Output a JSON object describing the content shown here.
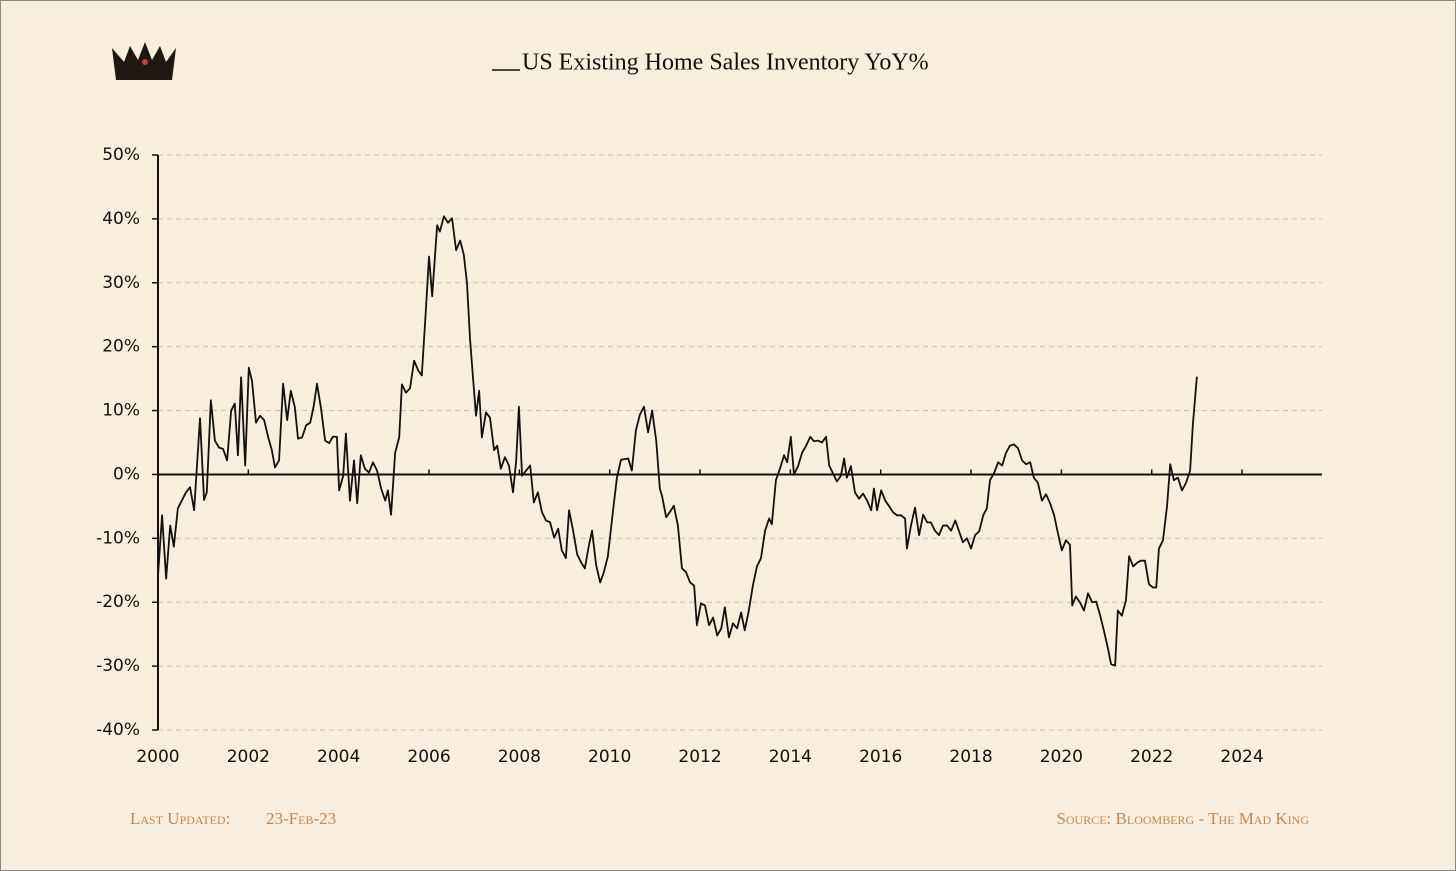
{
  "chart_data": {
    "type": "line",
    "title": "US Existing Home Sales Inventory YoY%",
    "footer_label": "Last Updated:",
    "footer_date": "23-Feb-23",
    "source": "Source: Bloomberg - The Mad King",
    "xlim": [
      2000,
      2025.77
    ],
    "xticks": [
      2000,
      2002,
      2004,
      2006,
      2008,
      2010,
      2012,
      2014,
      2016,
      2018,
      2020,
      2022,
      2024
    ],
    "ylim": [
      -40,
      50
    ],
    "yticks": [
      {
        "value": -40,
        "label": "-40%"
      },
      {
        "value": -30,
        "label": "-30%"
      },
      {
        "value": -20,
        "label": "-20%"
      },
      {
        "value": -10,
        "label": "-10%"
      },
      {
        "value": 0,
        "label": "0%"
      },
      {
        "value": 10,
        "label": "10%"
      },
      {
        "value": 20,
        "label": "20%"
      },
      {
        "value": 30,
        "label": "30%"
      },
      {
        "value": 40,
        "label": "40%"
      },
      {
        "value": 50,
        "label": "50%"
      }
    ],
    "grid": true,
    "x": [
      2000.0,
      2000.09,
      2000.18,
      2000.27,
      2000.35,
      2000.44,
      2000.62,
      2000.71,
      2000.8,
      2000.93,
      2001.02,
      2001.08,
      2001.17,
      2001.26,
      2001.35,
      2001.44,
      2001.53,
      2001.62,
      2001.7,
      2001.77,
      2001.84,
      2001.93,
      2002.01,
      2002.08,
      2002.17,
      2002.26,
      2002.35,
      2002.44,
      2002.52,
      2002.59,
      2002.68,
      2002.77,
      2002.86,
      2002.94,
      2003.03,
      2003.1,
      2003.19,
      2003.28,
      2003.37,
      2003.45,
      2003.52,
      2003.61,
      2003.7,
      2003.79,
      2003.87,
      2003.96,
      2004.01,
      2004.1,
      2004.16,
      2004.25,
      2004.34,
      2004.41,
      2004.49,
      2004.58,
      2004.67,
      2004.76,
      2004.85,
      2004.94,
      2005.03,
      2005.09,
      2005.16,
      2005.25,
      2005.34,
      2005.4,
      2005.49,
      2005.58,
      2005.67,
      2005.76,
      2005.84,
      2005.93,
      2006.0,
      2006.07,
      2006.18,
      2006.24,
      2006.33,
      2006.42,
      2006.51,
      2006.6,
      2006.69,
      2006.77,
      2006.84,
      2006.91,
      2006.97,
      2007.04,
      2007.11,
      2007.17,
      2007.26,
      2007.35,
      2007.44,
      2007.51,
      2007.59,
      2007.68,
      2007.77,
      2007.86,
      2007.93,
      2007.99,
      2008.06,
      2008.15,
      2008.24,
      2008.32,
      2008.41,
      2008.5,
      2008.59,
      2008.68,
      2008.77,
      2008.86,
      2008.94,
      2009.03,
      2009.1,
      2009.19,
      2009.28,
      2009.37,
      2009.45,
      2009.54,
      2009.61,
      2009.7,
      2009.79,
      2009.87,
      2009.96,
      2010.07,
      2010.16,
      2010.25,
      2010.41,
      2010.49,
      2010.58,
      2010.67,
      2010.76,
      2010.85,
      2010.94,
      2011.03,
      2011.11,
      2011.16,
      2011.25,
      2011.34,
      2011.42,
      2011.51,
      2011.6,
      2011.69,
      2011.78,
      2011.87,
      2011.93,
      2012.02,
      2012.11,
      2012.2,
      2012.29,
      2012.38,
      2012.47,
      2012.55,
      2012.64,
      2012.73,
      2012.82,
      2012.91,
      2012.99,
      2013.08,
      2013.17,
      2013.26,
      2013.35,
      2013.44,
      2013.53,
      2013.59,
      2013.68,
      2013.77,
      2013.86,
      2013.93,
      2014.01,
      2014.08,
      2014.17,
      2014.26,
      2014.35,
      2014.44,
      2014.52,
      2014.61,
      2014.7,
      2014.79,
      2014.86,
      2014.94,
      2015.03,
      2015.12,
      2015.19,
      2015.25,
      2015.34,
      2015.43,
      2015.52,
      2015.61,
      2015.7,
      2015.79,
      2015.85,
      2015.92,
      2016.01,
      2016.1,
      2016.18,
      2016.27,
      2016.36,
      2016.45,
      2016.54,
      2016.58,
      2016.67,
      2016.76,
      2016.85,
      2016.94,
      2017.03,
      2017.11,
      2017.2,
      2017.29,
      2017.38,
      2017.47,
      2017.56,
      2017.65,
      2017.73,
      2017.82,
      2017.91,
      2018.0,
      2018.09,
      2018.18,
      2018.27,
      2018.35,
      2018.42,
      2018.51,
      2018.6,
      2018.69,
      2018.77,
      2018.86,
      2018.95,
      2019.04,
      2019.13,
      2019.22,
      2019.31,
      2019.39,
      2019.48,
      2019.57,
      2019.66,
      2019.75,
      2019.84,
      2019.93,
      2020.01,
      2020.1,
      2020.19,
      2020.24,
      2020.32,
      2020.41,
      2020.5,
      2020.59,
      2020.68,
      2020.77,
      2020.86,
      2020.94,
      2021.03,
      2021.1,
      2021.19,
      2021.25,
      2021.34,
      2021.43,
      2021.5,
      2021.59,
      2021.68,
      2021.76,
      2021.85,
      2021.94,
      2022.03,
      2022.1,
      2022.16,
      2022.25,
      2022.34,
      2022.41,
      2022.49,
      2022.58,
      2022.67,
      2022.76,
      2022.85,
      2022.91,
      2023.0
    ],
    "series": [
      {
        "name": "US Existing Home Sales Inventory YoY%",
        "color": "#111111",
        "values": [
          -15.8,
          -6.4,
          -16.3,
          -8,
          -11.3,
          -5.3,
          -2.8,
          -2,
          -5.6,
          8.8,
          -4,
          -2.8,
          11.6,
          5.3,
          4.2,
          4,
          2.2,
          10,
          11.1,
          3,
          15.2,
          1.4,
          16.7,
          14.7,
          8.1,
          9.2,
          8.5,
          5.8,
          3.8,
          1.1,
          2.2,
          14.2,
          8.5,
          13.1,
          10.5,
          5.6,
          5.8,
          7.7,
          8.1,
          10.8,
          14.2,
          10.3,
          5.3,
          4.9,
          5.9,
          5.9,
          -2.5,
          -0.2,
          6.4,
          -4.1,
          2.2,
          -4.5,
          3,
          0.9,
          0.3,
          1.9,
          0.6,
          -2.2,
          -4.1,
          -2.5,
          -6.3,
          3.4,
          5.8,
          14.1,
          12.8,
          13.5,
          17.8,
          16.3,
          15.5,
          25.7,
          34.1,
          27.9,
          39,
          38,
          40.4,
          39.4,
          40.1,
          35.1,
          36.6,
          34.4,
          30,
          21,
          15.5,
          9.2,
          13.1,
          5.8,
          9.7,
          8.9,
          3.8,
          4.5,
          0.9,
          2.7,
          1.4,
          -2.8,
          2.2,
          10.6,
          -0.2,
          0.6,
          1.4,
          -4.4,
          -2.8,
          -5.9,
          -7.2,
          -7.5,
          -9.9,
          -8.5,
          -11.9,
          -13.1,
          -5.6,
          -8.8,
          -12.5,
          -13.8,
          -14.7,
          -11.1,
          -8.8,
          -14.2,
          -16.9,
          -15.3,
          -12.8,
          -5.9,
          -0.5,
          2.3,
          2.5,
          0.6,
          6.9,
          9.4,
          10.6,
          6.6,
          10,
          5.3,
          -2.2,
          -3.4,
          -6.7,
          -5.8,
          -4.9,
          -8,
          -14.7,
          -15.3,
          -16.9,
          -17.4,
          -23.6,
          -20.2,
          -20.5,
          -23.6,
          -22.4,
          -25.2,
          -24.1,
          -20.8,
          -25.5,
          -23.3,
          -24.1,
          -21.6,
          -24.4,
          -21.3,
          -17.4,
          -14.4,
          -13.1,
          -8.8,
          -6.9,
          -7.8,
          -0.9,
          0.9,
          3,
          1.9,
          5.9,
          0,
          1.3,
          3.4,
          4.5,
          5.9,
          5.2,
          5.3,
          5,
          5.9,
          1.4,
          0.2,
          -1.1,
          -0.2,
          2.5,
          -0.5,
          1.3,
          -2.8,
          -3.8,
          -3,
          -4.1,
          -5.6,
          -2.2,
          -5.6,
          -2.5,
          -4.1,
          -4.9,
          -5.9,
          -6.4,
          -6.4,
          -6.9,
          -11.6,
          -8,
          -5.2,
          -9.5,
          -6.3,
          -7.5,
          -7.5,
          -8.8,
          -9.5,
          -8,
          -8,
          -8.8,
          -7.2,
          -8.8,
          -10.6,
          -10,
          -11.6,
          -9.5,
          -8.9,
          -6.4,
          -5.3,
          -0.9,
          0.2,
          1.9,
          1.4,
          3.3,
          4.5,
          4.7,
          4.1,
          2.2,
          1.6,
          1.9,
          -0.5,
          -1.3,
          -4.1,
          -3.1,
          -4.5,
          -6.4,
          -9.4,
          -11.9,
          -10.3,
          -11,
          -20.5,
          -19.1,
          -20,
          -21.3,
          -18.6,
          -20,
          -19.9,
          -22.1,
          -24.4,
          -27.2,
          -29.7,
          -29.9,
          -21.3,
          -22.1,
          -19.7,
          -12.8,
          -14.4,
          -13.8,
          -13.5,
          -13.5,
          -17.2,
          -17.7,
          -17.7,
          -11.6,
          -10.3,
          -4.9,
          1.6,
          -0.9,
          -0.5,
          -2.5,
          -1.3,
          0.6,
          7.7,
          15.3
        ]
      }
    ]
  }
}
